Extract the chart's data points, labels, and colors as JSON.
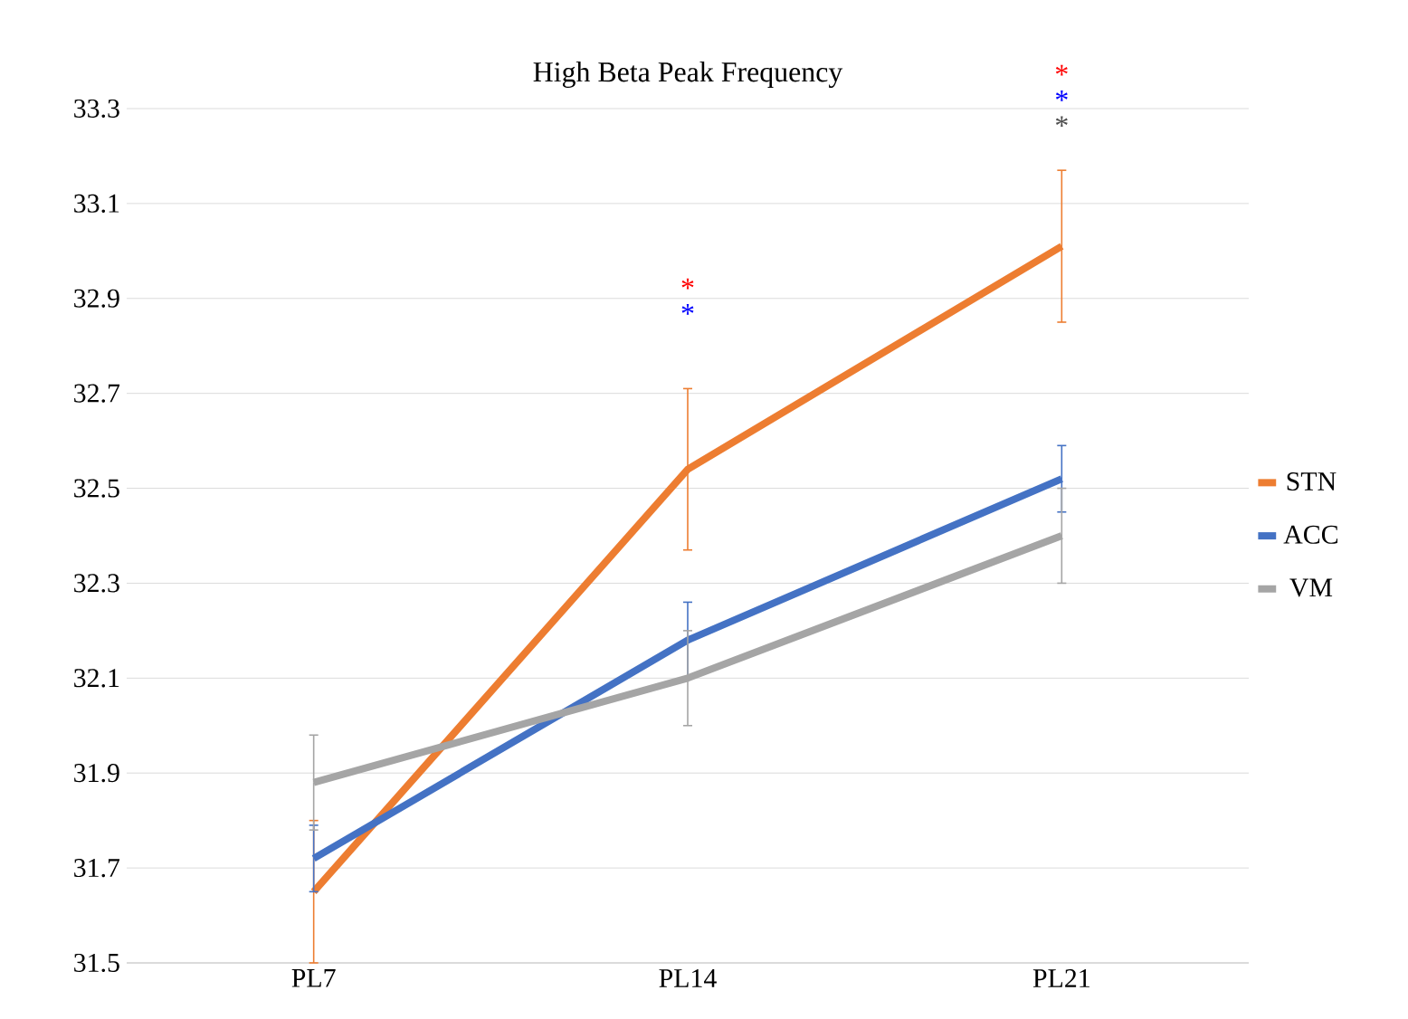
{
  "chart_data": {
    "type": "line",
    "title": "High Beta Peak Frequency",
    "categories": [
      "PL7",
      "PL14",
      "PL21"
    ],
    "series": [
      {
        "name": "STN",
        "color": "#ed7d31",
        "values": [
          31.65,
          32.54,
          33.01
        ],
        "errors": [
          0.15,
          0.17,
          0.16
        ]
      },
      {
        "name": "ACC",
        "color": "#4472c4",
        "values": [
          31.72,
          32.18,
          32.52
        ],
        "errors": [
          0.07,
          0.08,
          0.07
        ]
      },
      {
        "name": "VM",
        "color": "#a5a5a5",
        "values": [
          31.88,
          32.1,
          32.4
        ],
        "errors": [
          0.1,
          0.1,
          0.1
        ]
      }
    ],
    "ylim": [
      31.5,
      33.3
    ],
    "yticks": [
      31.5,
      31.7,
      31.9,
      32.1,
      32.3,
      32.5,
      32.7,
      32.9,
      33.1,
      33.3
    ],
    "grid": "y",
    "legend": "right",
    "marker": "none",
    "line_style": "solid",
    "annotations": [
      "*",
      "*",
      "*",
      "*",
      "*"
    ]
  }
}
